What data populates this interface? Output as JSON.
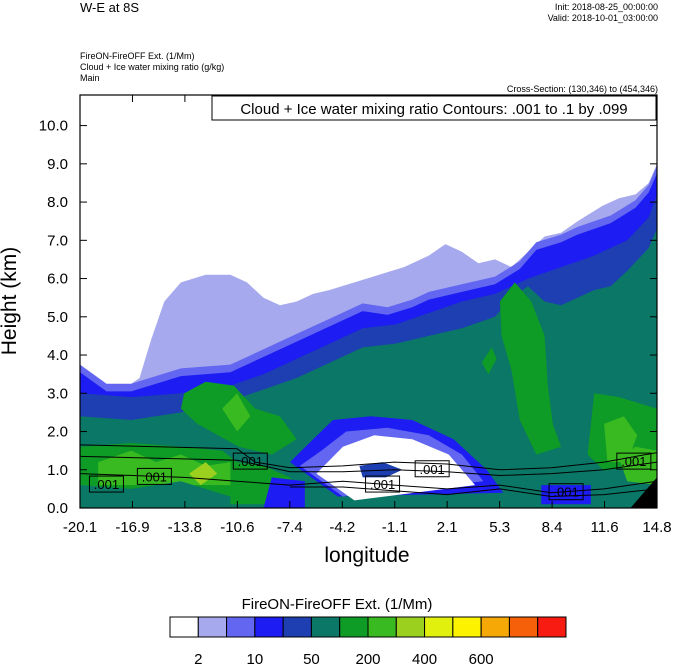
{
  "header": {
    "title": "W-E at 8S",
    "init": "Init: 2018-08-25_00:00:00",
    "valid": "Valid: 2018-10-01_03:00:00",
    "field_line1": "FireON-FireOFF Ext.   (1/Mm)",
    "field_line2": "Cloud + Ice water mixing ratio   (g/kg)",
    "field_line3": "Main",
    "cross_section": "Cross-Section: (130,346) to (454,346)"
  },
  "chart_data": {
    "type": "heatmap",
    "title": "W-E at 8S",
    "contour_label": "Cloud + Ice water mixing ratio Contours: .001 to .1 by .099",
    "xlabel": "longitude",
    "ylabel": "Height (km)",
    "xlim": [
      -20.1,
      14.8
    ],
    "ylim": [
      0.0,
      10.8
    ],
    "x_ticks": [
      "-20.1",
      "-16.9",
      "-13.8",
      "-10.6",
      "-7.4",
      "-4.2",
      "-1.1",
      "2.1",
      "5.3",
      "8.4",
      "11.6",
      "14.8"
    ],
    "y_ticks": [
      "0.0",
      "1.0",
      "2.0",
      "3.0",
      "4.0",
      "5.0",
      "6.0",
      "7.0",
      "8.0",
      "9.0",
      "10.0"
    ],
    "y_tick_values": [
      0,
      1,
      2,
      3,
      4,
      5,
      6,
      7,
      8,
      9,
      10
    ],
    "contour_value_labels": [
      {
        "text": ".001",
        "x": -18.5,
        "y": 0.6
      },
      {
        "text": ".001",
        "x": -15.6,
        "y": 0.8
      },
      {
        "text": ".001",
        "x": -9.8,
        "y": 1.2
      },
      {
        "text": ".001",
        "x": -1.8,
        "y": 0.6
      },
      {
        "text": ".001",
        "x": 1.2,
        "y": 1.0
      },
      {
        "text": ".001",
        "x": 9.3,
        "y": 0.4
      },
      {
        "text": ".001",
        "x": 13.4,
        "y": 1.2
      }
    ],
    "fields": {
      "blue_top": [
        [
          -20.1,
          3.7
        ],
        [
          -18.5,
          3.2
        ],
        [
          -17,
          3.2
        ],
        [
          -14,
          3.6
        ],
        [
          -11,
          3.7
        ],
        [
          -9.5,
          4.0
        ],
        [
          -7.5,
          4.4
        ],
        [
          -5,
          4.9
        ],
        [
          -3,
          5.3
        ],
        [
          -1.5,
          5.2
        ],
        [
          0,
          5.4
        ],
        [
          1,
          5.6
        ],
        [
          3,
          5.8
        ],
        [
          5,
          6.0
        ],
        [
          6.5,
          6.4
        ],
        [
          7.5,
          6.9
        ],
        [
          9,
          7.1
        ],
        [
          10,
          7.3
        ],
        [
          12,
          7.6
        ],
        [
          13.5,
          8.0
        ],
        [
          14.3,
          8.4
        ],
        [
          14.8,
          8.9
        ]
      ],
      "lavender_top": [
        [
          -20.1,
          3.5
        ],
        [
          -19,
          3.3
        ],
        [
          -18.5,
          3.0
        ],
        [
          -17.5,
          3.1
        ],
        [
          -16.5,
          3.4
        ],
        [
          -15.8,
          4.4
        ],
        [
          -15,
          5.4
        ],
        [
          -14,
          5.9
        ],
        [
          -12.5,
          6.1
        ],
        [
          -11,
          6.1
        ],
        [
          -10,
          5.9
        ],
        [
          -9,
          5.5
        ],
        [
          -8,
          5.3
        ],
        [
          -7,
          5.4
        ],
        [
          -6,
          5.6
        ],
        [
          -5,
          5.7
        ],
        [
          -3.5,
          5.9
        ],
        [
          -2,
          6.1
        ],
        [
          -0.5,
          6.3
        ],
        [
          1,
          6.6
        ],
        [
          2,
          6.9
        ],
        [
          3,
          6.7
        ],
        [
          4,
          6.4
        ],
        [
          5,
          6.5
        ],
        [
          6,
          6.3
        ],
        [
          7,
          6.7
        ],
        [
          8,
          7.1
        ],
        [
          9,
          7.2
        ],
        [
          10,
          7.5
        ],
        [
          11.5,
          7.9
        ],
        [
          12.5,
          8.1
        ],
        [
          13.5,
          8.2
        ],
        [
          14.3,
          8.5
        ],
        [
          14.8,
          9.0
        ]
      ]
    },
    "colorbar": {
      "title": "FireON-FireOFF Ext.  (1/Mm)",
      "labels": [
        "2",
        "10",
        "50",
        "200",
        "400",
        "600"
      ],
      "colors": [
        "#ffffff",
        "#a7a9ee",
        "#6266f0",
        "#1d1cf2",
        "#1d3fb1",
        "#0b7766",
        "#0e9b26",
        "#3aba21",
        "#9bd11e",
        "#e2f00d",
        "#fdf200",
        "#f6a906",
        "#f66008",
        "#f81b12"
      ]
    },
    "palette": {
      "white": "#ffffff",
      "lavender": "#a7a9ee",
      "periwinkle": "#6266f0",
      "blue": "#1d1cf2",
      "navy": "#1d3fb1",
      "teal": "#0b7766",
      "green": "#0e9b26",
      "lightgreen": "#3aba21",
      "yellowgreen": "#9bd11e",
      "black": "#000000"
    }
  }
}
